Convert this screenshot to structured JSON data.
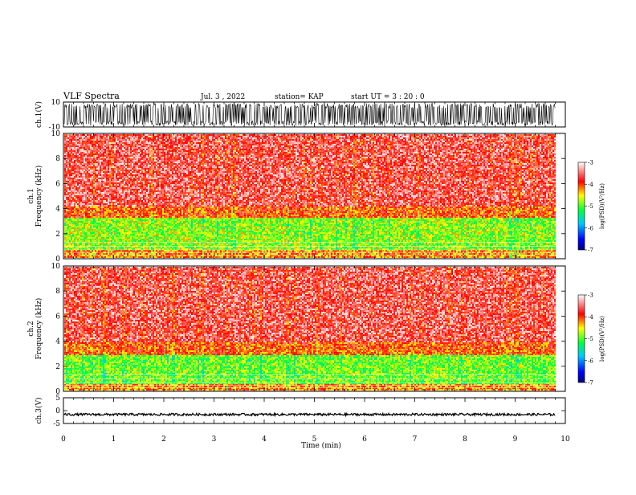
{
  "header": {
    "title": "VLF Spectra",
    "date": "Jul. 3 , 2022",
    "station": "station= KAP",
    "start": "start UT =  3 : 20 : 0"
  },
  "chart_data": [
    {
      "type": "line",
      "name": "ch1-waveform",
      "ylabel": "ch.1(V)",
      "ylim": [
        -10,
        10
      ],
      "yticks": [
        "10",
        "-10"
      ],
      "xlim": [
        0,
        10
      ],
      "description_of_signal": "noisy waveform spanning roughly -9 to 9 V, t = 0 to 9.8 min"
    },
    {
      "type": "heatmap",
      "name": "ch1-spectrogram",
      "ylabel": "ch.1\nFrequency (kHz)",
      "ylim": [
        0,
        10
      ],
      "yticks": [
        "0",
        "2",
        "4",
        "6",
        "8",
        "10"
      ],
      "xlim": [
        0,
        10
      ],
      "data_extent_min": 9.8,
      "bands": [
        {
          "f_lo": 0.0,
          "f_hi": 0.8,
          "level": -4.2
        },
        {
          "f_lo": 0.8,
          "f_hi": 3.3,
          "level": -4.8
        },
        {
          "f_lo": 3.3,
          "f_hi": 4.2,
          "level": -4.0
        },
        {
          "f_lo": 4.2,
          "f_hi": 10.0,
          "level": -3.6
        }
      ],
      "colorbar": {
        "label": "log(PSD)(V²/Hz)",
        "ticks": [
          "-3",
          "-4",
          "-5",
          "-6",
          "-7"
        ],
        "range": [
          -7,
          -3
        ]
      }
    },
    {
      "type": "heatmap",
      "name": "ch2-spectrogram",
      "ylabel": "ch.2\nFrequency (kHz)",
      "ylim": [
        0,
        10
      ],
      "yticks": [
        "0",
        "2",
        "4",
        "6",
        "8",
        "10"
      ],
      "xlim": [
        0,
        10
      ],
      "data_extent_min": 9.8,
      "bands": [
        {
          "f_lo": 0.0,
          "f_hi": 0.6,
          "level": -4.2
        },
        {
          "f_lo": 0.6,
          "f_hi": 3.0,
          "level": -4.9
        },
        {
          "f_lo": 3.0,
          "f_hi": 4.0,
          "level": -4.0
        },
        {
          "f_lo": 4.0,
          "f_hi": 10.0,
          "level": -3.6
        }
      ],
      "colorbar": {
        "label": "log(PSD)(V²/Hz)",
        "ticks": [
          "-3",
          "-4",
          "-5",
          "-6",
          "-7"
        ],
        "range": [
          -7,
          -3
        ]
      }
    },
    {
      "type": "line",
      "name": "ch3-waveform",
      "ylabel": "ch.3(V)",
      "ylim": [
        -5,
        5
      ],
      "yticks": [
        "5",
        "0",
        "-5"
      ],
      "xlim": [
        0,
        10
      ],
      "description_of_signal": "flat band around -1.5 V, t = 0 to 9.8 min"
    }
  ],
  "xaxis": {
    "label": "Time (min)",
    "ticks": [
      "0",
      "1",
      "2",
      "3",
      "4",
      "5",
      "6",
      "7",
      "8",
      "9",
      "10"
    ],
    "range": [
      0,
      10
    ]
  },
  "colors": {
    "colormap": [
      "#000080",
      "#0000ff",
      "#00c8ff",
      "#00ff40",
      "#ffff00",
      "#ff0000",
      "#ffffff"
    ],
    "waveform": "#000000"
  }
}
